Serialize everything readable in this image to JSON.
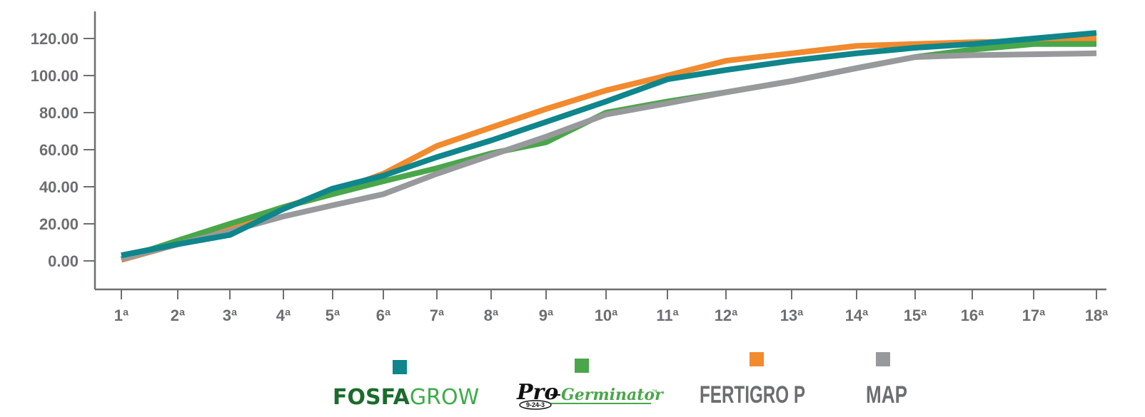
{
  "chart_data": {
    "type": "line",
    "title": "",
    "xlabel": "",
    "ylabel": "",
    "ylim": [
      0,
      125
    ],
    "y_ticks": [
      "0.00",
      "20.00",
      "40.00",
      "60.00",
      "80.00",
      "100.00",
      "120.00"
    ],
    "categories": [
      "1ª",
      "2ª",
      "3ª",
      "4ª",
      "5ª",
      "6ª",
      "7ª",
      "8ª",
      "9ª",
      "10ª",
      "11ª",
      "12ª",
      "13ª",
      "14ª",
      "15ª",
      "16ª",
      "17ª",
      "18ª"
    ],
    "grid": false,
    "legend_position": "bottom",
    "series": [
      {
        "name": "FERTIGRO P",
        "color": "#f28a2e",
        "values": [
          0.5,
          9,
          18,
          29,
          37,
          47,
          62,
          72,
          82,
          92,
          100,
          108,
          112,
          116,
          117,
          118,
          118.5,
          120
        ]
      },
      {
        "name": "Pro-Germinator",
        "color": "#4aa64a",
        "values": [
          1,
          11,
          20,
          29,
          36,
          43,
          50,
          58,
          64,
          80,
          86,
          91,
          97,
          104,
          110,
          114,
          117,
          117
        ]
      },
      {
        "name": "MAP",
        "color": "#98999c",
        "values": [
          1,
          9,
          16,
          24,
          30,
          36,
          47,
          57,
          67,
          79,
          85,
          91,
          97,
          104,
          110,
          111,
          111.5,
          112
        ]
      },
      {
        "name": "FOSFAGROW",
        "color": "#0f868b",
        "values": [
          3,
          9,
          14,
          28,
          39,
          46,
          56,
          65,
          75,
          86,
          98,
          103,
          108,
          112,
          115,
          117,
          120,
          123
        ]
      }
    ]
  },
  "legend": {
    "fosfagrow_part1": "FOSFA",
    "fosfagrow_part2": "GROW",
    "progerminator_pro": "Pro",
    "progerminator_germ": "Germinator",
    "progerminator_tm": "™",
    "progerminator_badge": "9-24-3",
    "fertigro": "FERTIGRO P",
    "map": "MAP"
  }
}
